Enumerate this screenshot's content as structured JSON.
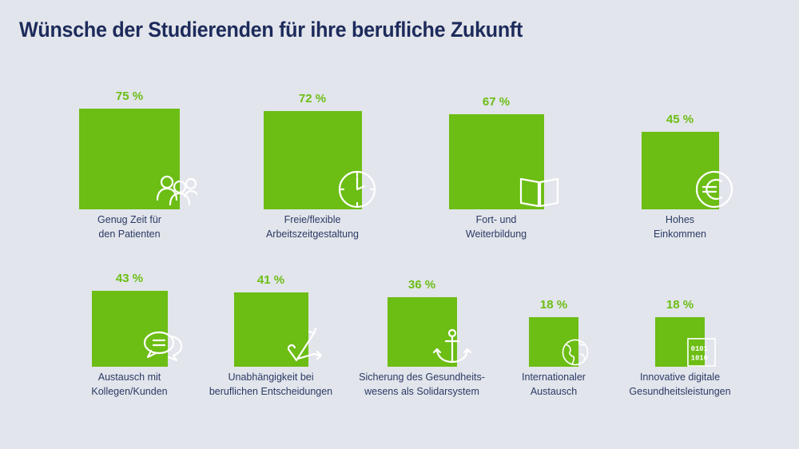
{
  "title": "Wünsche der Studierenden für ihre berufliche Zukunft",
  "colors": {
    "bar": "#6cbd14",
    "title": "#1d2b5c",
    "label": "#2b3a66",
    "background": "#e2e5eb"
  },
  "chart_data": {
    "type": "bar",
    "title": "Wünsche der Studierenden für ihre berufliche Zukunft",
    "unit": "%",
    "categories": [
      "Genug Zeit für\nden Patienten",
      "Freie/flexible\nArbeitszeitgestaltung",
      "Fort- und\nWeiterbildung",
      "Hohes\nEinkommen",
      "Austausch mit\nKollegen/Kunden",
      "Unabhängigkeit bei\nberuflichen Entscheidungen",
      "Sicherung des Gesundheits-\nwesens als Solidarsystem",
      "Internationaler\nAustausch",
      "Innovative digitale\nGesundheitsleistungen"
    ],
    "values": [
      75,
      72,
      67,
      45,
      43,
      41,
      36,
      18,
      18
    ],
    "value_labels": [
      "75 %",
      "72 %",
      "67 %",
      "45 %",
      "43 %",
      "41 %",
      "36 %",
      "18 %",
      "18 %"
    ],
    "icons": [
      "people-icon",
      "clock-icon",
      "book-icon",
      "euro-icon",
      "speech-bubbles-icon",
      "arrows-check-icon",
      "anchor-icon",
      "globe-icon",
      "binary-code-icon"
    ]
  }
}
